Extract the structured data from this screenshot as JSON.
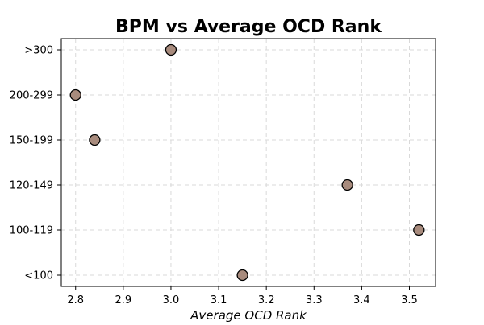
{
  "chart_data": {
    "type": "scatter",
    "title": "BPM vs Average OCD Rank",
    "xlabel": "Average OCD Rank",
    "ylabel": "",
    "xlim": [
      2.77,
      3.555
    ],
    "x_ticks": [
      2.8,
      2.9,
      3.0,
      3.1,
      3.2,
      3.3,
      3.4,
      3.5
    ],
    "x_tick_labels": [
      "2.8",
      "2.9",
      "3.0",
      "3.1",
      "3.2",
      "3.3",
      "3.4",
      "3.5"
    ],
    "y_categories": [
      "<100",
      "100-119",
      "120-149",
      "150-199",
      "200-299",
      ">300"
    ],
    "grid": true,
    "points": [
      {
        "category": "<100",
        "x": 3.15
      },
      {
        "category": "100-119",
        "x": 3.52
      },
      {
        "category": "120-149",
        "x": 3.37
      },
      {
        "category": "150-199",
        "x": 2.84
      },
      {
        "category": "200-299",
        "x": 2.8
      },
      {
        "category": ">300",
        "x": 3.0
      }
    ],
    "colors": {
      "marker_fill": "#a88b7d",
      "marker_edge": "#000000",
      "grid": "#d9d9d9",
      "axis": "#000000"
    }
  }
}
